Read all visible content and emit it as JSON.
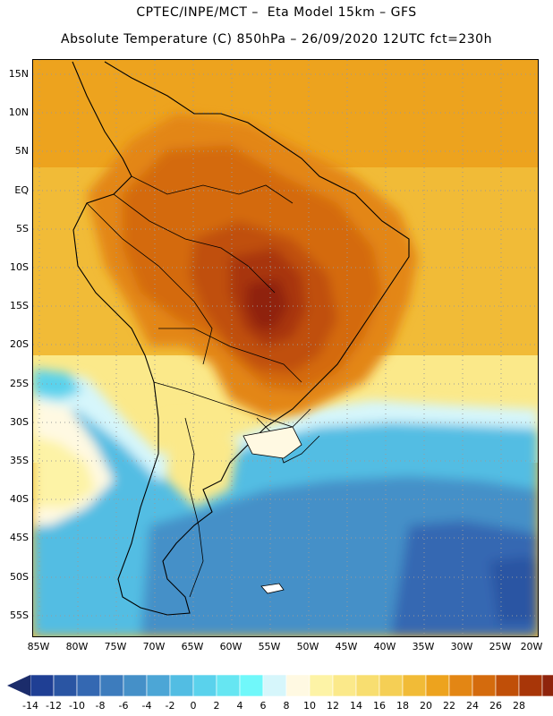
{
  "header": {
    "line1": "CPTEC/INPE/MCT –  Eta Model 15km – GFS",
    "line2": "Absolute Temperature (C) 850hPa – 26/09/2020 12UTC fct=230h"
  },
  "map": {
    "lat_labels": [
      "15N",
      "10N",
      "5N",
      "EQ",
      "5S",
      "10S",
      "15S",
      "20S",
      "25S",
      "30S",
      "35S",
      "40S",
      "45S",
      "50S",
      "55S"
    ],
    "lon_labels": [
      "85W",
      "80W",
      "75W",
      "70W",
      "65W",
      "60W",
      "55W",
      "50W",
      "45W",
      "40W",
      "35W",
      "30W",
      "25W",
      "20W"
    ]
  },
  "colorbar": {
    "labels": [
      "-14",
      "-12",
      "-10",
      "-8",
      "-6",
      "-4",
      "-2",
      "0",
      "2",
      "4",
      "6",
      "8",
      "10",
      "12",
      "14",
      "16",
      "18",
      "20",
      "22",
      "24",
      "26",
      "28"
    ],
    "colors": [
      "#1f3f94",
      "#2a55a3",
      "#3468b2",
      "#3d7cbd",
      "#4590c8",
      "#4ca6d6",
      "#52bde3",
      "#5ad2ec",
      "#66e6f2",
      "#70f8fa",
      "#d6f6fb",
      "#fff9e2",
      "#fdf3a6",
      "#fbe98a",
      "#f8de70",
      "#f5cf55",
      "#f1bb37",
      "#eda31e",
      "#e38614",
      "#d46b0d",
      "#c04f08",
      "#a83608",
      "#8f240c",
      "#75180f"
    ],
    "under_color": "#1b2c6b",
    "over_color": "#660a24"
  }
}
